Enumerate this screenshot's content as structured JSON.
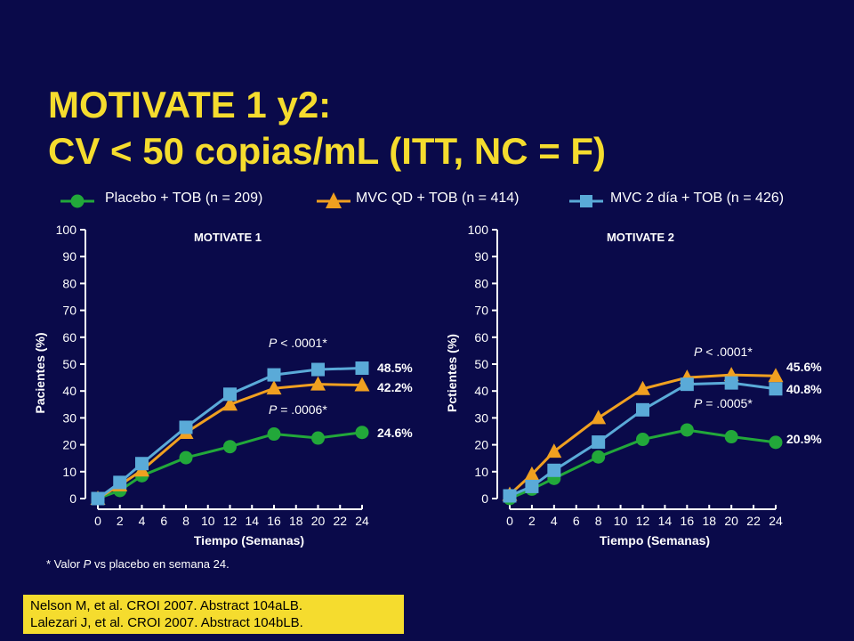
{
  "slide": {
    "title_line1": "MOTIVATE 1 y2:",
    "title_line2": "CV < 50 copias/mL (ITT, NC = F)",
    "footnote_pre": "* Valor ",
    "footnote_p": "P",
    "footnote_post": " vs placebo en semana 24.",
    "references": [
      "Nelson M, et al. CROI 2007. Abstract 104aLB.",
      "Lalezari J, et al. CROI 2007. Abstract 104bLB."
    ]
  },
  "colors": {
    "background": "#0a0a4a",
    "title": "#f5dc2e",
    "placebo": "#22a83a",
    "mvc_qd": "#f0a020",
    "mvc_bid": "#5aaad8"
  },
  "legend": [
    {
      "label": "Placebo + TOB (n = 209)",
      "marker": "circle",
      "color_key": "placebo"
    },
    {
      "label": "MVC QD + TOB (n = 414)",
      "marker": "triangle",
      "color_key": "mvc_qd"
    },
    {
      "label": "MVC 2 día + TOB (n = 426)",
      "marker": "square",
      "color_key": "mvc_bid"
    }
  ],
  "chart_data": [
    {
      "type": "line",
      "title": "MOTIVATE 1",
      "xlabel": "Tiempo (Semanas)",
      "ylabel": "Pacientes (%)",
      "xlim": [
        0,
        24
      ],
      "ylim": [
        0,
        100
      ],
      "xticks": [
        0,
        2,
        4,
        6,
        8,
        10,
        12,
        14,
        16,
        18,
        20,
        22,
        24
      ],
      "yticks": [
        0,
        10,
        20,
        30,
        40,
        50,
        60,
        70,
        80,
        90,
        100
      ],
      "series": [
        {
          "name": "Placebo + TOB (n = 209)",
          "color_key": "placebo",
          "marker": "circle",
          "x": [
            0,
            2,
            4,
            8,
            12,
            16,
            20,
            24
          ],
          "y": [
            0,
            3,
            8.5,
            15.2,
            19.3,
            24,
            22.5,
            24.6
          ]
        },
        {
          "name": "MVC QD + TOB (n = 414)",
          "color_key": "mvc_qd",
          "marker": "triangle",
          "x": [
            0,
            2,
            4,
            8,
            12,
            16,
            20,
            24
          ],
          "y": [
            0,
            5,
            10.5,
            24.5,
            35,
            41,
            42.5,
            42.2
          ]
        },
        {
          "name": "MVC 2 día + TOB (n = 426)",
          "color_key": "mvc_bid",
          "marker": "square",
          "x": [
            0,
            2,
            4,
            8,
            12,
            16,
            20,
            24
          ],
          "y": [
            0,
            6,
            13,
            26.5,
            38.8,
            46,
            48,
            48.5
          ]
        }
      ],
      "end_labels": [
        "48.5%",
        "42.2%",
        "24.6%"
      ],
      "pvalues": [
        {
          "p": "P",
          "text": " < .0001*"
        },
        {
          "p": "P",
          "text": " = .0006*"
        }
      ]
    },
    {
      "type": "line",
      "title": "MOTIVATE 2",
      "xlabel": "Tiempo (Semanas)",
      "ylabel": "Pctientes (%)",
      "xlim": [
        0,
        24
      ],
      "ylim": [
        0,
        100
      ],
      "xticks": [
        0,
        2,
        4,
        6,
        8,
        10,
        12,
        14,
        16,
        18,
        20,
        22,
        24
      ],
      "yticks": [
        0,
        10,
        20,
        30,
        40,
        50,
        60,
        70,
        80,
        90,
        100
      ],
      "series": [
        {
          "name": "Placebo + TOB (n = 209)",
          "color_key": "placebo",
          "marker": "circle",
          "x": [
            0,
            2,
            4,
            8,
            12,
            16,
            20,
            24
          ],
          "y": [
            0,
            3.5,
            7.5,
            15.5,
            22,
            25.5,
            23,
            20.9
          ]
        },
        {
          "name": "MVC QD + TOB (n = 414)",
          "color_key": "mvc_qd",
          "marker": "triangle",
          "x": [
            0,
            2,
            4,
            8,
            12,
            16,
            20,
            24
          ],
          "y": [
            1.5,
            9,
            17.5,
            30,
            40.8,
            45,
            46,
            45.6
          ]
        },
        {
          "name": "MVC 2 día + TOB (n = 426)",
          "color_key": "mvc_bid",
          "marker": "square",
          "x": [
            0,
            2,
            4,
            8,
            12,
            16,
            20,
            24
          ],
          "y": [
            1,
            4.5,
            10.5,
            21,
            33,
            42.5,
            43,
            40.8
          ]
        }
      ],
      "end_labels": [
        "45.6%",
        "40.8%",
        "20.9%"
      ],
      "pvalues": [
        {
          "p": "P",
          "text": " < .0001*"
        },
        {
          "p": "P",
          "text": " = .0005*"
        }
      ]
    }
  ]
}
